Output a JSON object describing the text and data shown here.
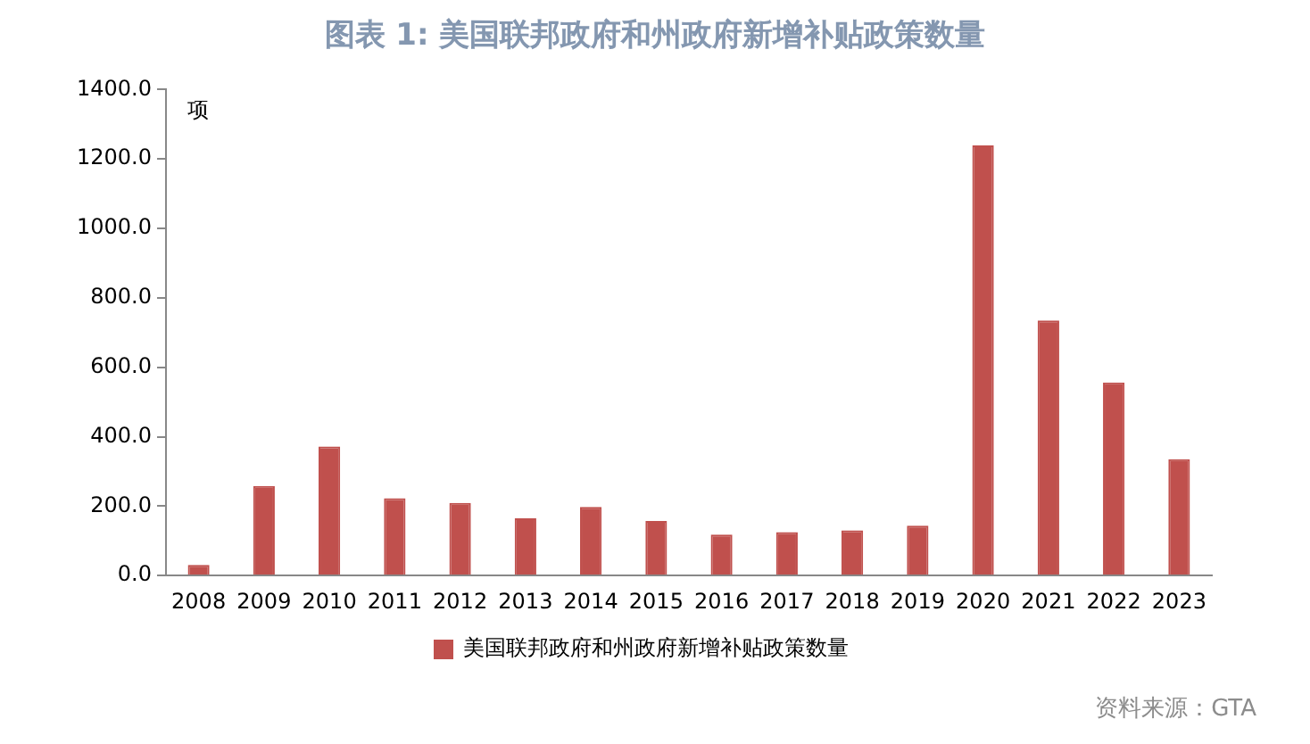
{
  "chart_data": {
    "type": "bar",
    "title": "图表 1:  美国联邦政府和州政府新增补贴政策数量",
    "ylabel": "项",
    "categories": [
      "2008",
      "2009",
      "2010",
      "2011",
      "2012",
      "2013",
      "2014",
      "2015",
      "2016",
      "2017",
      "2018",
      "2019",
      "2020",
      "2021",
      "2022",
      "2023"
    ],
    "series": [
      {
        "name": "美国联邦政府和州政府新增补贴政策数量",
        "color": "#c0504d",
        "values": [
          31,
          258,
          372,
          223,
          209,
          165,
          198,
          157,
          118,
          125,
          130,
          144,
          1239,
          735,
          556,
          335
        ]
      }
    ],
    "ylim": [
      0,
      1400
    ],
    "yticks": [
      {
        "value": 0,
        "label": "0.0"
      },
      {
        "value": 200,
        "label": "200.0"
      },
      {
        "value": 400,
        "label": "400.0"
      },
      {
        "value": 600,
        "label": "600.0"
      },
      {
        "value": 800,
        "label": "800.0"
      },
      {
        "value": 1000,
        "label": "1000.0"
      },
      {
        "value": 1200,
        "label": "1200.0"
      },
      {
        "value": 1400,
        "label": "1400.0"
      }
    ],
    "grid": false,
    "legend": "bottom",
    "annotations": [
      "资料来源：GTA"
    ]
  }
}
